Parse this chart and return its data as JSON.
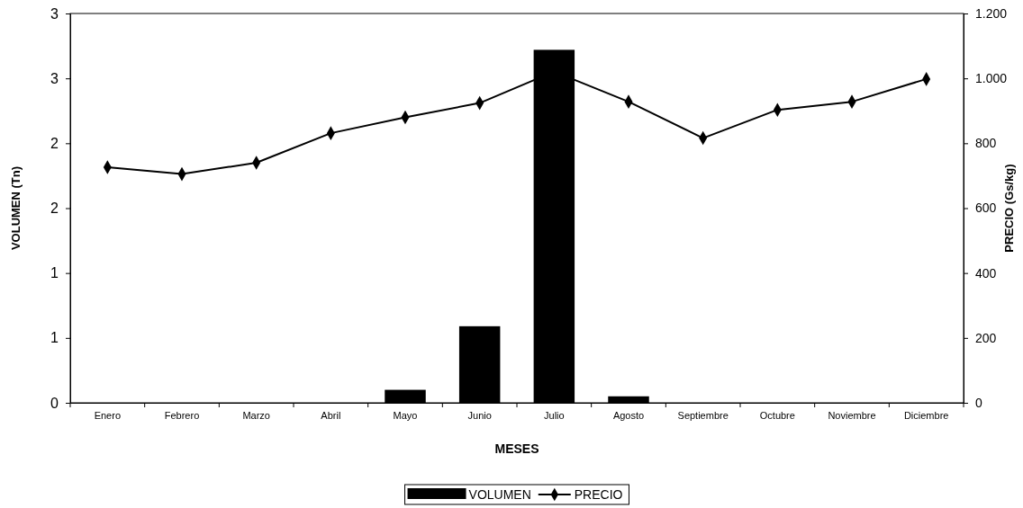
{
  "chart_data": {
    "type": "bar",
    "xlabel": "MESES",
    "ylabel": "VOLUMEN (Tn)",
    "y2label": "PRECIO (Gs/kg)",
    "categories": [
      "Enero",
      "Febrero",
      "Marzo",
      "Abril",
      "Mayo",
      "Junio",
      "Julio",
      "Agosto",
      "Septiembre",
      "Octubre",
      "Noviembre",
      "Diciembre"
    ],
    "series": [
      {
        "name": "VOLUMEN",
        "color": "#000000",
        "values": [
          0,
          0,
          0,
          0,
          0.1,
          0.59,
          2.72,
          0.05,
          0,
          0,
          0,
          0
        ]
      },
      {
        "name": "PRECIO",
        "type": "line",
        "axis": "y2",
        "color": "#000000",
        "marker": "diamond",
        "values": [
          726,
          705,
          740,
          831,
          880,
          924,
          1021,
          928,
          816,
          903,
          928,
          998
        ]
      }
    ],
    "ylim": [
      0,
      3
    ],
    "yticks": [
      {
        "value": 0,
        "label": "0"
      },
      {
        "value": 0.5,
        "label": "1"
      },
      {
        "value": 1,
        "label": "1"
      },
      {
        "value": 1.5,
        "label": "2"
      },
      {
        "value": 2,
        "label": "2"
      },
      {
        "value": 2.5,
        "label": "3"
      },
      {
        "value": 3,
        "label": "3"
      }
    ],
    "y2lim": [
      0,
      1200
    ],
    "y2ticks": [
      0,
      200,
      400,
      600,
      800,
      {
        "value": 1000,
        "label": "1.000"
      },
      {
        "value": 1200,
        "label": "1.200"
      }
    ],
    "legend": "bottom",
    "grid": false
  }
}
